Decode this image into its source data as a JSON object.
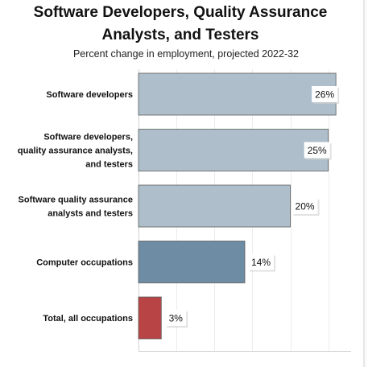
{
  "chart_data": {
    "type": "bar",
    "orientation": "horizontal",
    "title_line1": "Software Developers, Quality Assurance",
    "title_line2": "Analysts, and Testers",
    "subtitle": "Percent change in employment, projected 2022-32",
    "categories": [
      [
        "Software developers"
      ],
      [
        "Software developers,",
        "quality assurance analysts,",
        "and testers"
      ],
      [
        "Software quality assurance",
        "analysts and testers"
      ],
      [
        "Computer occupations"
      ],
      [
        "Total, all occupations"
      ]
    ],
    "values": [
      26,
      25,
      20,
      14,
      3
    ],
    "value_labels": [
      "26%",
      "25%",
      "20%",
      "14%",
      "3%"
    ],
    "colors": [
      "#aebfcb",
      "#aebfcb",
      "#aebfcb",
      "#6e8ca3",
      "#b94446"
    ],
    "xlim": [
      0,
      28
    ],
    "grid": true
  }
}
